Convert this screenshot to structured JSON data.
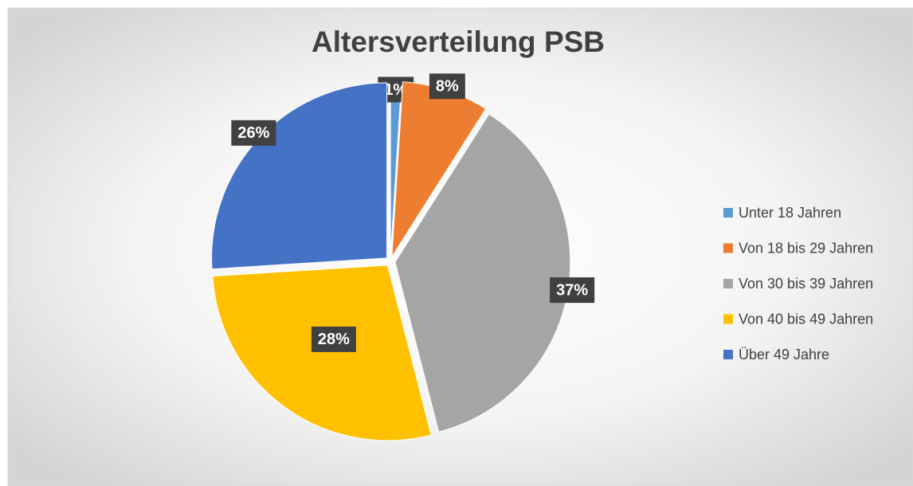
{
  "chart_data": {
    "type": "pie",
    "title": "Altersverteilung PSB",
    "categories": [
      "Unter 18 Jahren",
      "Von 18 bis 29 Jahren",
      "Von 30 bis 39 Jahren",
      "Von 40 bis 49 Jahren",
      "Über 49 Jahre"
    ],
    "values": [
      1,
      8,
      37,
      28,
      26
    ],
    "value_labels": [
      "1%",
      "8%",
      "37%",
      "28%",
      "26%"
    ],
    "colors": [
      "#5b9bd5",
      "#ed7d31",
      "#a5a5a5",
      "#ffc000",
      "#4472c4"
    ],
    "legend": "right"
  }
}
